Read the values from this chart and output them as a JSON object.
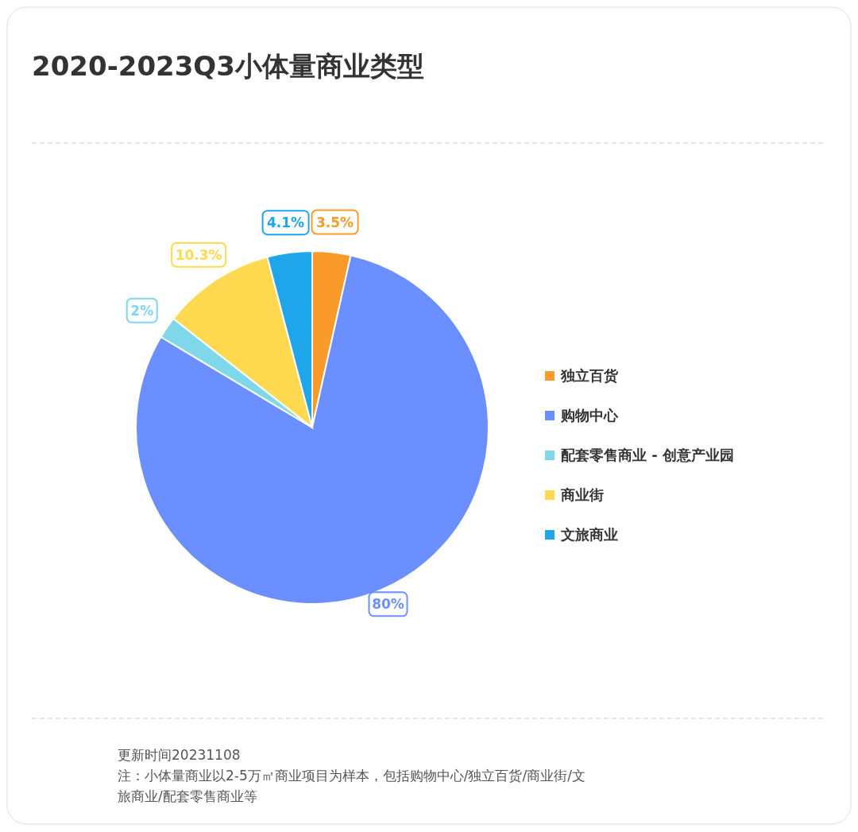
{
  "chart_data": {
    "type": "pie",
    "title": "2020-2023Q3小体量商业类型",
    "categories": [
      "独立百货",
      "购物中心",
      "配套零售商业 - 创意产业园",
      "商业街",
      "文旅商业"
    ],
    "values": [
      3.5,
      80,
      2,
      10.3,
      4.1
    ],
    "value_labels": [
      "3.5%",
      "80%",
      "2%",
      "10.3%",
      "4.1%"
    ],
    "colors": [
      "#fa9a2a",
      "#6b8fff",
      "#7fd7ea",
      "#ffd94f",
      "#1ea5ea"
    ],
    "legend": "right",
    "annotations": [
      "更新时间20231108",
      "注：小体量商业以2-5万㎡商业项目为样本，包括购物中心/独立百货/商业街/文旅商业/配套零售商业等"
    ]
  }
}
